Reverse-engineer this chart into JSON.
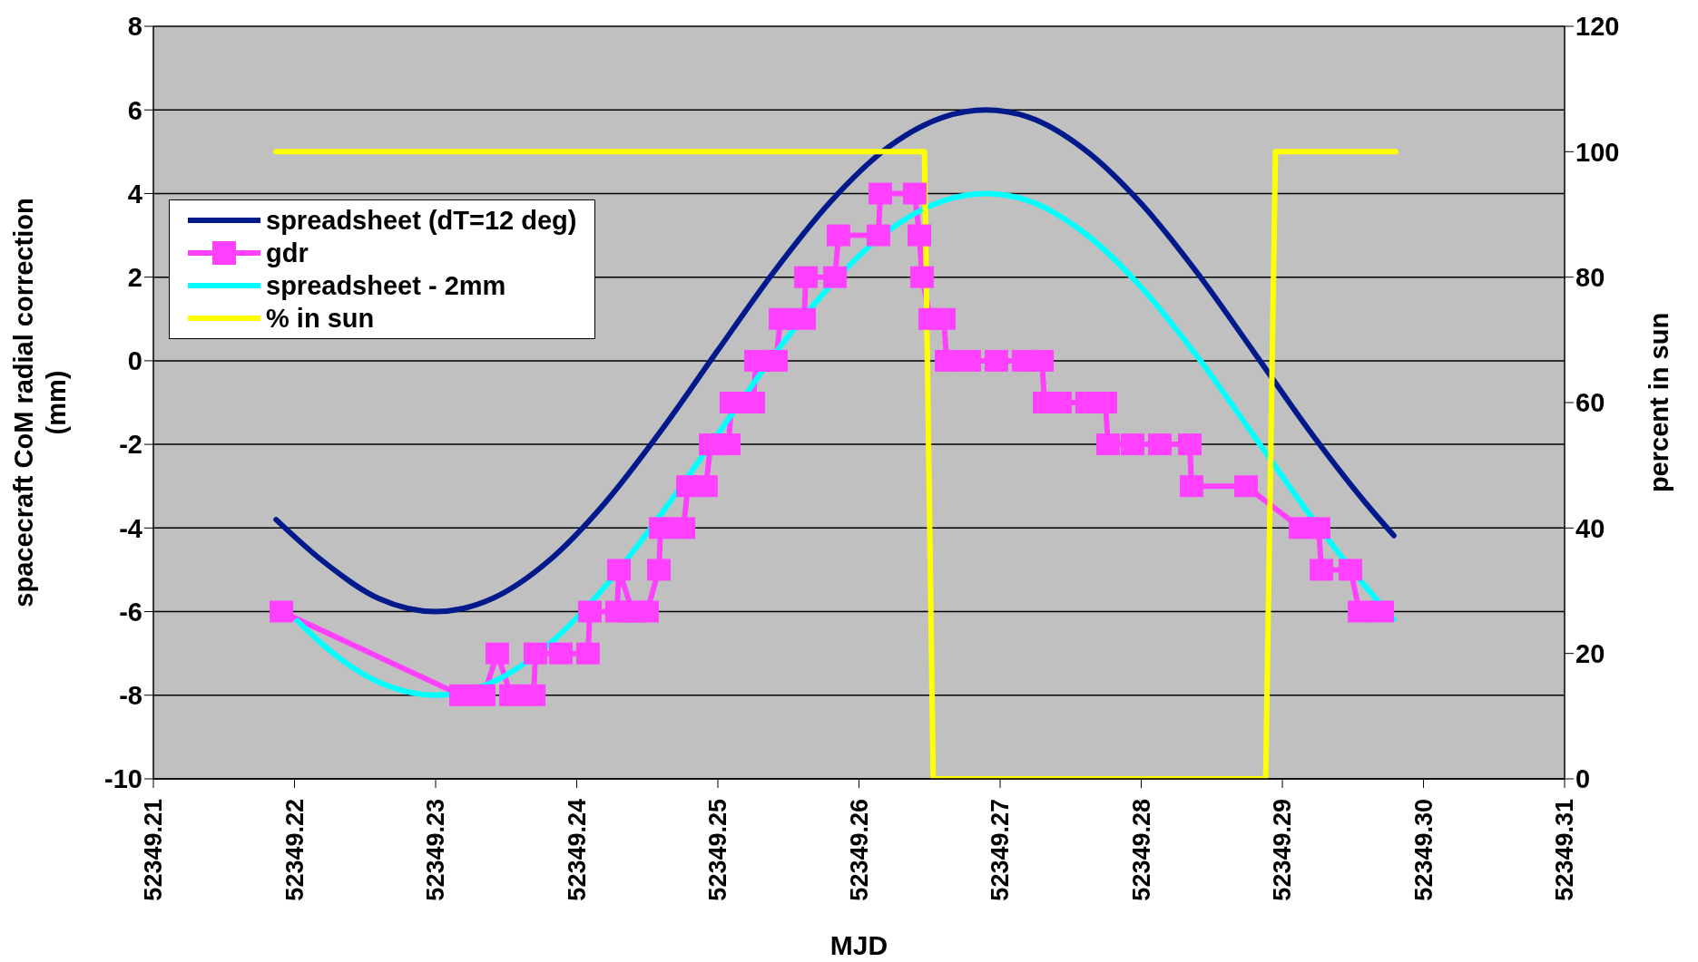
{
  "chart_data": {
    "type": "line",
    "xlabel": "MJD",
    "ylabel": "spacecraft CoM radial correction (mm)",
    "y2label": "percent in sun",
    "xlim": [
      52349.21,
      52349.31
    ],
    "xticks": [
      52349.21,
      52349.22,
      52349.23,
      52349.24,
      52349.25,
      52349.26,
      52349.27,
      52349.28,
      52349.29,
      {
        "value": 52349.3,
        "label": "52349.30"
      },
      52349.31
    ],
    "ylim": [
      -10,
      8
    ],
    "yticks": [
      -10,
      -8,
      -6,
      -4,
      -2,
      0,
      2,
      4,
      6,
      8
    ],
    "y2lim": [
      0,
      120
    ],
    "y2ticks": [
      0,
      20,
      40,
      60,
      80,
      100,
      120
    ],
    "grid": "y",
    "legend": "top left",
    "line_style": "solid",
    "series": [
      {
        "name": "spreadsheet (dT=12 deg)",
        "color": "#001a8c",
        "marker": "none",
        "x": [
          52349.2187,
          52349.222,
          52349.226,
          52349.23,
          52349.234,
          52349.238,
          52349.242,
          52349.246,
          52349.25,
          52349.254,
          52349.258,
          52349.262,
          52349.266,
          52349.269,
          52349.272,
          52349.276,
          52349.28,
          52349.284,
          52349.288,
          52349.292,
          52349.296,
          52349.2979
        ],
        "values": [
          -3.8,
          -4.79,
          -5.69,
          -6,
          -5.69,
          -4.79,
          -3.4,
          -1.66,
          0.25,
          2.14,
          3.81,
          5.09,
          5.83,
          6,
          5.83,
          5.05,
          3.76,
          2.09,
          0.2,
          -1.71,
          -3.44,
          -4.18
        ]
      },
      {
        "name": "gdr",
        "color": "#ff40ff",
        "marker": "square",
        "x": [
          52349.21907,
          52349.2318,
          52349.23341,
          52349.23437,
          52349.23534,
          52349.23695,
          52349.23707,
          52349.23887,
          52349.2408,
          52349.24093,
          52349.24286,
          52349.24299,
          52349.24395,
          52349.24498,
          52349.24582,
          52349.24595,
          52349.24756,
          52349.24788,
          52349.24916,
          52349.24949,
          52349.25077,
          52349.25096,
          52349.25251,
          52349.2527,
          52349.25412,
          52349.25444,
          52349.25611,
          52349.25624,
          52349.2583,
          52349.25855,
          52349.26138,
          52349.26151,
          52349.26395,
          52349.26428,
          52349.26447,
          52349.26505,
          52349.26601,
          52349.26621,
          52349.26781,
          52349.26974,
          52349.27167,
          52349.27296,
          52349.27315,
          52349.27424,
          52349.27617,
          52349.27746,
          52349.27765,
          52349.27939,
          52349.28132,
          52349.28344,
          52349.28357,
          52349.28743,
          52349.29129,
          52349.29257,
          52349.29277,
          52349.29482,
          52349.29547,
          52349.29707
        ],
        "values": [
          -6,
          -8,
          -8,
          -7,
          -8,
          -8,
          -7,
          -7,
          -7,
          -6,
          -6,
          -5,
          -6,
          -6,
          -5,
          -4,
          -4,
          -3,
          -3,
          -2,
          -2,
          -1,
          -1,
          0,
          0,
          1,
          1,
          2,
          2,
          3,
          3,
          4,
          4,
          3,
          2,
          1,
          1,
          0,
          0,
          0,
          0,
          0,
          -1,
          -1,
          -1,
          -1,
          -2,
          -2,
          -2,
          -2,
          -3,
          -3,
          -4,
          -4,
          -5,
          -5,
          -6,
          -6
        ]
      },
      {
        "name": "spreadsheet - 2mm",
        "color": "#00ffff",
        "marker": "none",
        "x": [
          52349.2202,
          52349.222,
          52349.226,
          52349.23,
          52349.234,
          52349.238,
          52349.242,
          52349.246,
          52349.25,
          52349.255,
          52349.258,
          52349.262,
          52349.266,
          52349.269,
          52349.272,
          52349.276,
          52349.28,
          52349.284,
          52349.288,
          52349.292,
          52349.296,
          52349.2979
        ],
        "values": [
          -6.22,
          -6.79,
          -7.69,
          -8,
          -7.69,
          -6.79,
          -5.4,
          -3.66,
          -1.75,
          0.59,
          1.81,
          3.09,
          3.83,
          4,
          3.83,
          3.05,
          1.76,
          0.09,
          -1.8,
          -3.71,
          -5.44,
          -6.18
        ]
      },
      {
        "name": "% in sun",
        "color": "#ffff00",
        "marker": "none",
        "axis": "y2",
        "x": [
          52349.2187,
          52349.26464,
          52349.26526,
          52349.28882,
          52349.28951,
          52349.29803
        ],
        "values": [
          100,
          100,
          0,
          0,
          100,
          100
        ]
      }
    ]
  }
}
